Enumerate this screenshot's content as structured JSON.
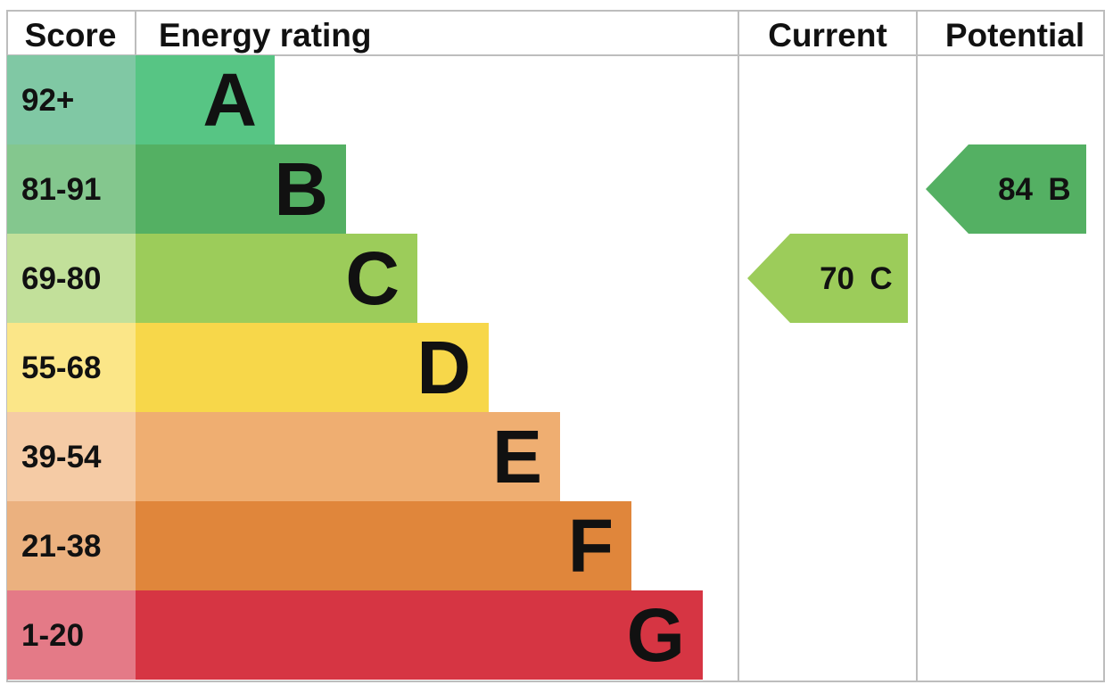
{
  "headers": {
    "score": "Score",
    "energy_rating": "Energy rating",
    "current": "Current",
    "potential": "Potential"
  },
  "chart_data": {
    "type": "bar",
    "title": "",
    "bands": [
      {
        "letter": "A",
        "score": "92+",
        "color": "#57c584",
        "score_bg": "#80c8a4"
      },
      {
        "letter": "B",
        "score": "81-91",
        "color": "#54b063",
        "score_bg": "#84c78e"
      },
      {
        "letter": "C",
        "score": "69-80",
        "color": "#9ccc5a",
        "score_bg": "#c2e09a"
      },
      {
        "letter": "D",
        "score": "55-68",
        "color": "#f7d74a",
        "score_bg": "#fbe688"
      },
      {
        "letter": "E",
        "score": "39-54",
        "color": "#efae71",
        "score_bg": "#f5cba5"
      },
      {
        "letter": "F",
        "score": "21-38",
        "color": "#e0863b",
        "score_bg": "#ebb17f"
      },
      {
        "letter": "G",
        "score": "1-20",
        "color": "#d63543",
        "score_bg": "#e47a87"
      }
    ],
    "current": {
      "value": 70,
      "band": "C",
      "label_value": "70",
      "label_band": "C",
      "color": "#9ccc5a"
    },
    "potential": {
      "value": 84,
      "band": "B",
      "label_value": "84",
      "label_band": "B",
      "color": "#54b063"
    }
  }
}
